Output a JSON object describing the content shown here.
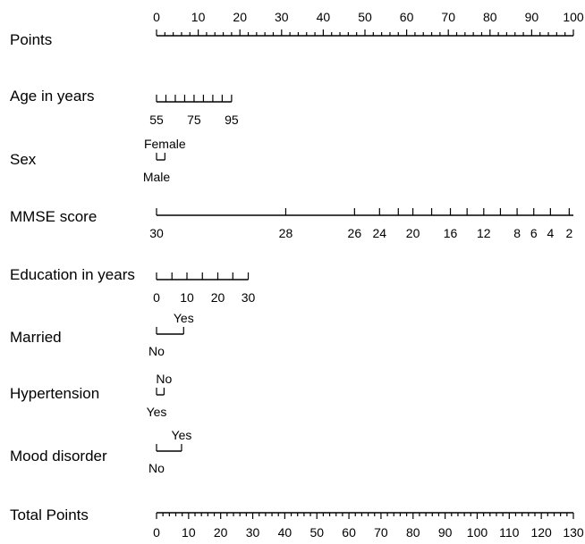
{
  "chart_data": {
    "type": "nomogram",
    "colors": {
      "ink": "#000000",
      "background": "#ffffff"
    },
    "points_axis": {
      "label": "Points",
      "min": 0,
      "max": 100,
      "ticks": [
        "0",
        "10",
        "20",
        "30",
        "40",
        "50",
        "60",
        "70",
        "80",
        "90",
        "100"
      ],
      "minor_step": 2
    },
    "variables": [
      {
        "label": "Age in years",
        "type": "continuous",
        "points_range": [
          0,
          18
        ],
        "ticks": [
          {
            "value": "55",
            "points": 0,
            "labeled": true
          },
          {
            "value": "60",
            "points": 2.25,
            "labeled": false
          },
          {
            "value": "65",
            "points": 4.5,
            "labeled": false
          },
          {
            "value": "70",
            "points": 6.75,
            "labeled": false
          },
          {
            "value": "75",
            "points": 9.0,
            "labeled": true
          },
          {
            "value": "80",
            "points": 11.25,
            "labeled": false
          },
          {
            "value": "85",
            "points": 13.5,
            "labeled": false
          },
          {
            "value": "90",
            "points": 15.75,
            "labeled": false
          },
          {
            "value": "95",
            "points": 18.0,
            "labeled": true
          }
        ]
      },
      {
        "label": "Sex",
        "type": "categorical",
        "levels": [
          {
            "value": "Female",
            "points": 2,
            "position": "above"
          },
          {
            "value": "Male",
            "points": 0,
            "position": "below"
          }
        ]
      },
      {
        "label": "MMSE score",
        "type": "continuous",
        "points_range": [
          0,
          100
        ],
        "ticks": [
          {
            "value": "30",
            "points": 0,
            "labeled": true
          },
          {
            "value": "28",
            "points": 31,
            "labeled": true
          },
          {
            "value": "26",
            "points": 47.5,
            "labeled": true
          },
          {
            "value": "24",
            "points": 53.5,
            "labeled": true
          },
          {
            "value": "22",
            "points": 58,
            "labeled": false
          },
          {
            "value": "20",
            "points": 61.5,
            "labeled": true
          },
          {
            "value": "18",
            "points": 66,
            "labeled": false
          },
          {
            "value": "16",
            "points": 70.5,
            "labeled": true
          },
          {
            "value": "14",
            "points": 74.5,
            "labeled": false
          },
          {
            "value": "12",
            "points": 78.5,
            "labeled": true
          },
          {
            "value": "10",
            "points": 82.5,
            "labeled": false
          },
          {
            "value": "8",
            "points": 86.5,
            "labeled": true
          },
          {
            "value": "6",
            "points": 90.5,
            "labeled": true
          },
          {
            "value": "4",
            "points": 94.5,
            "labeled": true
          },
          {
            "value": "2",
            "points": 99,
            "labeled": true
          }
        ]
      },
      {
        "label": "Education in years",
        "type": "continuous",
        "points_range": [
          0,
          22
        ],
        "ticks": [
          {
            "value": "0",
            "points": 0,
            "labeled": true
          },
          {
            "value": "5",
            "points": 3.7,
            "labeled": false
          },
          {
            "value": "10",
            "points": 7.3,
            "labeled": true
          },
          {
            "value": "15",
            "points": 11.0,
            "labeled": false
          },
          {
            "value": "20",
            "points": 14.7,
            "labeled": true
          },
          {
            "value": "25",
            "points": 18.3,
            "labeled": false
          },
          {
            "value": "30",
            "points": 22.0,
            "labeled": true
          }
        ]
      },
      {
        "label": "Married",
        "type": "categorical",
        "levels": [
          {
            "value": "Yes",
            "points": 6.5,
            "position": "above"
          },
          {
            "value": "No",
            "points": 0,
            "position": "below"
          }
        ]
      },
      {
        "label": "Hypertension",
        "type": "categorical",
        "levels": [
          {
            "value": "No",
            "points": 1.8,
            "position": "above"
          },
          {
            "value": "Yes",
            "points": 0,
            "position": "below"
          }
        ]
      },
      {
        "label": "Mood disorder",
        "type": "categorical",
        "levels": [
          {
            "value": "Yes",
            "points": 6,
            "position": "above"
          },
          {
            "value": "No",
            "points": 0,
            "position": "below"
          }
        ]
      }
    ],
    "total_points_axis": {
      "label": "Total Points",
      "min": 0,
      "max": 130,
      "ticks": [
        "0",
        "10",
        "20",
        "30",
        "40",
        "50",
        "60",
        "70",
        "80",
        "90",
        "100",
        "110",
        "120",
        "130"
      ],
      "minor_step": 2
    }
  }
}
